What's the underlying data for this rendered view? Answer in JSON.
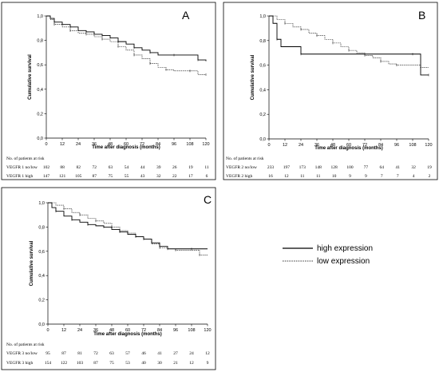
{
  "chart_data": [
    {
      "type": "line",
      "panel_label": "A",
      "xlabel": "Time after diagnosis (months)",
      "ylabel": "Cumulative survival",
      "xlim": [
        0,
        120
      ],
      "ylim": [
        0.0,
        1.0
      ],
      "x_ticks": [
        "0",
        "12",
        "24",
        "36",
        "48",
        "60",
        "72",
        "84",
        "96",
        "108",
        "120"
      ],
      "y_ticks": [
        "0,0",
        "0,2",
        "0,4",
        "0,6",
        "0,8",
        "1,0"
      ],
      "risk_header": "No. of patients at risk",
      "risk_rows": [
        {
          "label": "VEGFR 1 no/low",
          "counts": [
            "102",
            "88",
            "82",
            "72",
            "63",
            "54",
            "44",
            "39",
            "26",
            "19",
            "11"
          ]
        },
        {
          "label": "VEGFR 1 high",
          "counts": [
            "147",
            "121",
            "105",
            "87",
            "75",
            "55",
            "43",
            "32",
            "22",
            "17",
            "6"
          ]
        }
      ],
      "series": [
        {
          "style": "solid",
          "points": [
            [
              0,
              1.0
            ],
            [
              3,
              0.98
            ],
            [
              6,
              0.95
            ],
            [
              12,
              0.93
            ],
            [
              18,
              0.91
            ],
            [
              24,
              0.88
            ],
            [
              30,
              0.87
            ],
            [
              36,
              0.85
            ],
            [
              42,
              0.84
            ],
            [
              48,
              0.82
            ],
            [
              54,
              0.79
            ],
            [
              60,
              0.77
            ],
            [
              66,
              0.74
            ],
            [
              72,
              0.72
            ],
            [
              78,
              0.7
            ],
            [
              84,
              0.68
            ],
            [
              96,
              0.68
            ],
            [
              108,
              0.68
            ],
            [
              114,
              0.64
            ],
            [
              120,
              0.63
            ]
          ]
        },
        {
          "style": "dashed",
          "points": [
            [
              0,
              1.0
            ],
            [
              3,
              0.97
            ],
            [
              6,
              0.93
            ],
            [
              12,
              0.91
            ],
            [
              18,
              0.88
            ],
            [
              24,
              0.86
            ],
            [
              30,
              0.85
            ],
            [
              36,
              0.83
            ],
            [
              42,
              0.81
            ],
            [
              48,
              0.79
            ],
            [
              54,
              0.75
            ],
            [
              60,
              0.72
            ],
            [
              66,
              0.68
            ],
            [
              72,
              0.65
            ],
            [
              78,
              0.61
            ],
            [
              84,
              0.58
            ],
            [
              90,
              0.56
            ],
            [
              96,
              0.55
            ],
            [
              108,
              0.55
            ],
            [
              114,
              0.52
            ],
            [
              120,
              0.52
            ]
          ]
        }
      ]
    },
    {
      "type": "line",
      "panel_label": "B",
      "xlabel": "Time after diagnosis (months)",
      "ylabel": "Cumulative survival",
      "xlim": [
        0,
        120
      ],
      "ylim": [
        0.0,
        1.0
      ],
      "x_ticks": [
        "0",
        "12",
        "24",
        "36",
        "48",
        "60",
        "72",
        "84",
        "96",
        "108",
        "120"
      ],
      "y_ticks": [
        "0,0",
        "0,2",
        "0,4",
        "0,6",
        "0,8",
        "1,0"
      ],
      "risk_header": "No. of patients at risk",
      "risk_rows": [
        {
          "label": "VEGFR 2 no/low",
          "counts": [
            "233",
            "197",
            "173",
            "148",
            "128",
            "100",
            "77",
            "64",
            "41",
            "32",
            "19"
          ]
        },
        {
          "label": "VEGFR 2 high",
          "counts": [
            "16",
            "12",
            "11",
            "11",
            "10",
            "9",
            "9",
            "7",
            "7",
            "4",
            "2"
          ]
        }
      ],
      "series": [
        {
          "style": "solid",
          "points": [
            [
              0,
              1.0
            ],
            [
              3,
              0.94
            ],
            [
              6,
              0.81
            ],
            [
              9,
              0.75
            ],
            [
              24,
              0.69
            ],
            [
              72,
              0.69
            ],
            [
              108,
              0.69
            ],
            [
              114,
              0.52
            ],
            [
              120,
              0.52
            ]
          ]
        },
        {
          "style": "dashed",
          "points": [
            [
              0,
              1.0
            ],
            [
              6,
              0.97
            ],
            [
              12,
              0.94
            ],
            [
              18,
              0.91
            ],
            [
              24,
              0.89
            ],
            [
              30,
              0.86
            ],
            [
              36,
              0.84
            ],
            [
              42,
              0.81
            ],
            [
              48,
              0.78
            ],
            [
              54,
              0.75
            ],
            [
              60,
              0.72
            ],
            [
              66,
              0.7
            ],
            [
              72,
              0.68
            ],
            [
              78,
              0.66
            ],
            [
              84,
              0.63
            ],
            [
              90,
              0.61
            ],
            [
              96,
              0.6
            ],
            [
              108,
              0.6
            ],
            [
              114,
              0.58
            ],
            [
              120,
              0.58
            ]
          ]
        }
      ]
    },
    {
      "type": "line",
      "panel_label": "C",
      "xlabel": "Time after diagnosis (months)",
      "ylabel": "Cumulative survival",
      "xlim": [
        0,
        120
      ],
      "ylim": [
        0.0,
        1.0
      ],
      "x_ticks": [
        "0",
        "12",
        "24",
        "36",
        "48",
        "60",
        "72",
        "84",
        "96",
        "108",
        "120"
      ],
      "y_ticks": [
        "0,0",
        "0,2",
        "0,4",
        "0,6",
        "0,8",
        "1,0"
      ],
      "risk_header": "No. of patients at risk",
      "risk_rows": [
        {
          "label": "VEGFR 3 no/low",
          "counts": [
            "95",
            "87",
            "81",
            "72",
            "63",
            "57",
            "46",
            "41",
            "27",
            "24",
            "12"
          ]
        },
        {
          "label": "VEGFR 3 high",
          "counts": [
            "154",
            "122",
            "103",
            "87",
            "75",
            "53",
            "40",
            "30",
            "21",
            "12",
            "9"
          ]
        }
      ],
      "series": [
        {
          "style": "solid",
          "points": [
            [
              0,
              1.0
            ],
            [
              3,
              0.96
            ],
            [
              6,
              0.93
            ],
            [
              12,
              0.89
            ],
            [
              18,
              0.86
            ],
            [
              24,
              0.84
            ],
            [
              30,
              0.82
            ],
            [
              36,
              0.81
            ],
            [
              42,
              0.8
            ],
            [
              48,
              0.78
            ],
            [
              54,
              0.76
            ],
            [
              60,
              0.74
            ],
            [
              66,
              0.72
            ],
            [
              72,
              0.7
            ],
            [
              78,
              0.67
            ],
            [
              84,
              0.64
            ],
            [
              90,
              0.62
            ],
            [
              96,
              0.62
            ],
            [
              108,
              0.62
            ],
            [
              120,
              0.62
            ]
          ]
        },
        {
          "style": "dashed",
          "points": [
            [
              0,
              1.0
            ],
            [
              6,
              0.98
            ],
            [
              12,
              0.95
            ],
            [
              18,
              0.92
            ],
            [
              24,
              0.9
            ],
            [
              30,
              0.87
            ],
            [
              36,
              0.85
            ],
            [
              42,
              0.83
            ],
            [
              48,
              0.8
            ],
            [
              54,
              0.77
            ],
            [
              60,
              0.75
            ],
            [
              66,
              0.72
            ],
            [
              72,
              0.7
            ],
            [
              78,
              0.66
            ],
            [
              84,
              0.63
            ],
            [
              90,
              0.62
            ],
            [
              96,
              0.61
            ],
            [
              108,
              0.61
            ],
            [
              114,
              0.57
            ],
            [
              120,
              0.57
            ]
          ]
        }
      ]
    }
  ],
  "legend": {
    "items": [
      {
        "label": "high expression",
        "style": "solid"
      },
      {
        "label": "low expression",
        "style": "dashed"
      }
    ]
  }
}
